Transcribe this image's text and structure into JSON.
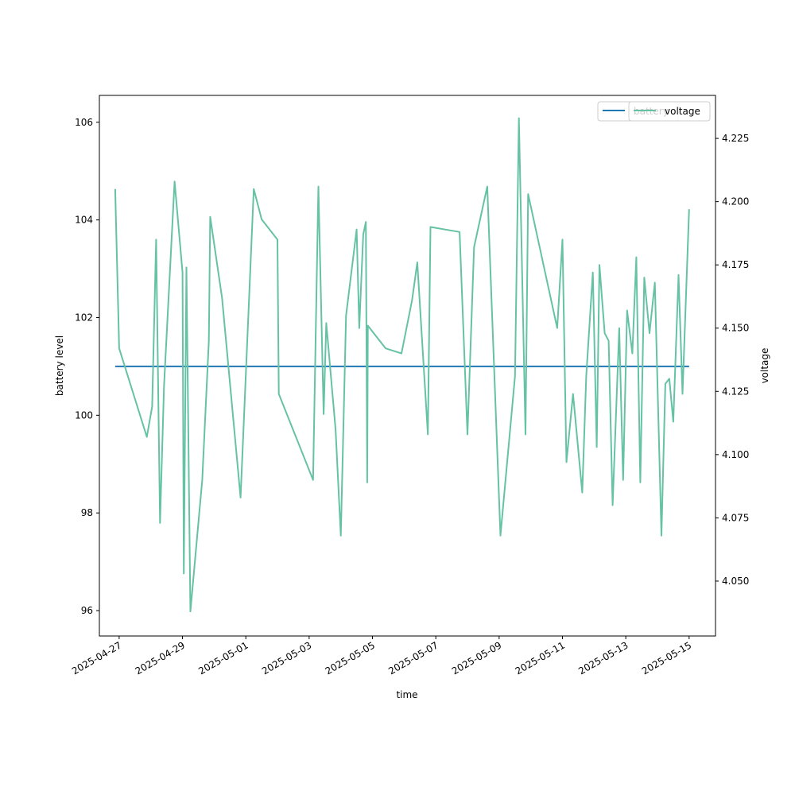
{
  "chart_data": {
    "type": "line",
    "xlabel": "time",
    "ylabel_left": "battery level",
    "ylabel_right": "voltage",
    "x_ticks": [
      "2025-04-27",
      "2025-04-29",
      "2025-05-01",
      "2025-05-03",
      "2025-05-05",
      "2025-05-07",
      "2025-05-09",
      "2025-05-11",
      "2025-05-13",
      "2025-05-15"
    ],
    "xlim": [
      "2025-04-26T09:00",
      "2025-05-15T20:00"
    ],
    "ylim_left": [
      95.48,
      106.55
    ],
    "y_ticks_left": [
      96,
      98,
      100,
      102,
      104,
      106
    ],
    "ylim_right": [
      4.0283,
      4.242
    ],
    "y_ticks_right": [
      "4.050",
      "4.075",
      "4.100",
      "4.125",
      "4.150",
      "4.175",
      "4.200",
      "4.225"
    ],
    "legend_position": "upper right",
    "series": [
      {
        "name": "battery",
        "axis": "left",
        "color": "#1f77b4",
        "x": [
          "2025-04-26T21:00",
          "2025-05-15T00:00"
        ],
        "y": [
          101,
          101
        ]
      },
      {
        "name": "voltage",
        "axis": "right",
        "color": "#66c2a5",
        "x": [
          "2025-04-26T21:00",
          "2025-04-27T00:00",
          "2025-04-27T21:00",
          "2025-04-28T01:00",
          "2025-04-28T04:00",
          "2025-04-28T07:00",
          "2025-04-28T10:00",
          "2025-04-28T18:00",
          "2025-04-29T00:00",
          "2025-04-29T01:00",
          "2025-04-29T03:00",
          "2025-04-29T06:00",
          "2025-04-29T15:00",
          "2025-04-29T20:00",
          "2025-04-29T21:00",
          "2025-04-30T06:00",
          "2025-04-30T20:00",
          "2025-05-01T06:00",
          "2025-05-01T12:00",
          "2025-05-02T00:00",
          "2025-05-02T01:00",
          "2025-05-03T03:00",
          "2025-05-03T07:00",
          "2025-05-03T11:00",
          "2025-05-03T13:00",
          "2025-05-03T20:00",
          "2025-05-04T00:00",
          "2025-05-04T04:00",
          "2025-05-04T12:00",
          "2025-05-04T14:00",
          "2025-05-04T17:00",
          "2025-05-04T19:00",
          "2025-05-04T20:00",
          "2025-05-04T20:30",
          "2025-05-05T10:00",
          "2025-05-05T22:00",
          "2025-05-06T06:00",
          "2025-05-06T10:00",
          "2025-05-06T18:00",
          "2025-05-06T20:00",
          "2025-05-07T18:00",
          "2025-05-08T00:00",
          "2025-05-08T05:00",
          "2025-05-08T15:00",
          "2025-05-09T01:00",
          "2025-05-09T12:00",
          "2025-05-09T15:00",
          "2025-05-09T20:00",
          "2025-05-09T22:00",
          "2025-05-10T20:00",
          "2025-05-11T00:00",
          "2025-05-11T03:00",
          "2025-05-11T08:00",
          "2025-05-11T15:00",
          "2025-05-11T18:00",
          "2025-05-11T23:00",
          "2025-05-12T02:00",
          "2025-05-12T04:00",
          "2025-05-12T08:00",
          "2025-05-12T11:00",
          "2025-05-12T14:00",
          "2025-05-12T19:00",
          "2025-05-12T22:00",
          "2025-05-13T01:00",
          "2025-05-13T05:00",
          "2025-05-13T08:00",
          "2025-05-13T11:00",
          "2025-05-13T14:00",
          "2025-05-13T18:00",
          "2025-05-13T22:00",
          "2025-05-14T03:00",
          "2025-05-14T06:00",
          "2025-05-14T09:00",
          "2025-05-14T12:00",
          "2025-05-14T16:00",
          "2025-05-14T19:00",
          "2025-05-15T00:00"
        ],
        "y": [
          4.205,
          4.142,
          4.107,
          4.119,
          4.185,
          4.073,
          4.127,
          4.208,
          4.172,
          4.053,
          4.174,
          4.038,
          4.09,
          4.145,
          4.194,
          4.162,
          4.083,
          4.205,
          4.193,
          4.185,
          4.124,
          4.09,
          4.206,
          4.116,
          4.152,
          4.11,
          4.068,
          4.155,
          4.189,
          4.15,
          4.187,
          4.192,
          4.089,
          4.151,
          4.142,
          4.14,
          4.161,
          4.176,
          4.108,
          4.19,
          4.188,
          4.108,
          4.182,
          4.206,
          4.068,
          4.131,
          4.233,
          4.108,
          4.203,
          4.15,
          4.185,
          4.097,
          4.124,
          4.085,
          4.131,
          4.172,
          4.103,
          4.175,
          4.148,
          4.145,
          4.08,
          4.15,
          4.09,
          4.157,
          4.14,
          4.178,
          4.089,
          4.17,
          4.148,
          4.168,
          4.068,
          4.128,
          4.13,
          4.113,
          4.171,
          4.124,
          4.197
        ]
      }
    ]
  }
}
